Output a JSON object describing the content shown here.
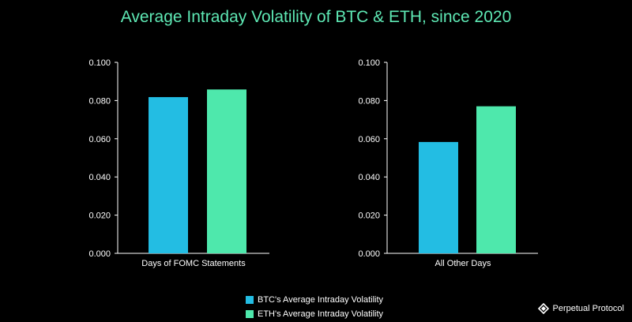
{
  "colors": {
    "btc": "#23bde3",
    "eth": "#4ee8ac",
    "title": "#5ee8b4",
    "axis": "#ffffff"
  },
  "chart_data": {
    "type": "bar",
    "title": "Average Intraday Volatility of BTC & ETH, since 2020",
    "ylim": [
      0,
      0.1
    ],
    "yticks": [
      "0.000",
      "0.020",
      "0.040",
      "0.060",
      "0.080",
      "0.100"
    ],
    "panels": [
      {
        "category": "Days of FOMC Statements",
        "series": [
          {
            "name": "BTC's Average Intraday Volatility",
            "value": 0.0818
          },
          {
            "name": "ETH's Average Intraday Volatility",
            "value": 0.0858
          }
        ]
      },
      {
        "category": "All Other Days",
        "series": [
          {
            "name": "BTC's Average Intraday Volatility",
            "value": 0.0583
          },
          {
            "name": "ETH's Average Intraday Volatility",
            "value": 0.077
          }
        ]
      }
    ],
    "legend": [
      "BTC's Average Intraday Volatility",
      "ETH's Average Intraday Volatility"
    ],
    "legend_position": "bottom-center"
  },
  "brand": {
    "name": "Perpetual Protocol",
    "icon": "perpetual-protocol-logo-icon"
  }
}
